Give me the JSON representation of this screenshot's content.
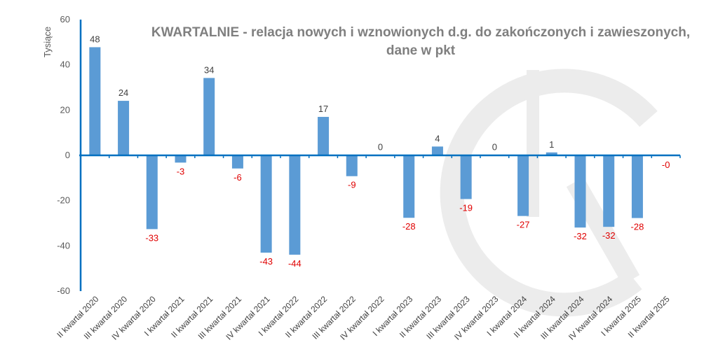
{
  "chart_data": {
    "type": "bar",
    "title_line1": "KWARTALNIE - relacja nowych i wznowionych d.g. do zakończonych i zawieszonych,",
    "title_line2": "dane w pkt",
    "ylabel": "Tysiące",
    "xlabel": "",
    "ylim": [
      -60,
      60
    ],
    "yticks": [
      60,
      40,
      20,
      0,
      -20,
      -40,
      -60
    ],
    "grid": false,
    "legend": "none",
    "colors": {
      "bar": "#5b9bd5",
      "axis": "#0070c0",
      "negative_label": "#e00000",
      "positive_label": "#404040",
      "title": "#7f7f7f",
      "watermark": "#e8e8e8"
    },
    "categories": [
      "II kwartał 2020",
      "III kwartał 2020",
      "IV kwartał 2020",
      "I kwartał 2021",
      "II kwartał 2021",
      "III kwartał 2021",
      "IV kwartał 2021",
      "I kwartał 2022",
      "II kwartał 2022",
      "III kwartał 2022",
      "IV kwartał 2022",
      "I kwartał 2023",
      "II kwartał 2023",
      "III kwartał 2023",
      "IV kwartał 2023",
      "I kwartał 2024",
      "II kwartał 2024",
      "III kwartał 2024",
      "IV kwartał 2024",
      "I kwartał 2025",
      "II kwartał 2025"
    ],
    "values": [
      47.8,
      24.1,
      -32.6,
      -3.2,
      34.2,
      -5.8,
      -43.0,
      -43.9,
      17.0,
      -9.2,
      0.2,
      -27.6,
      3.9,
      -19.3,
      0.2,
      -26.8,
      1.3,
      -31.9,
      -31.6,
      -27.7,
      -0.3
    ],
    "data_labels": [
      "48",
      "24",
      "-33",
      "-3",
      "34",
      "-6",
      "-43",
      "-44",
      "17",
      "-9",
      "0",
      "-28",
      "4",
      "-19",
      "0",
      "-27",
      "1",
      "-32",
      "-32",
      "-28",
      "-0"
    ]
  }
}
